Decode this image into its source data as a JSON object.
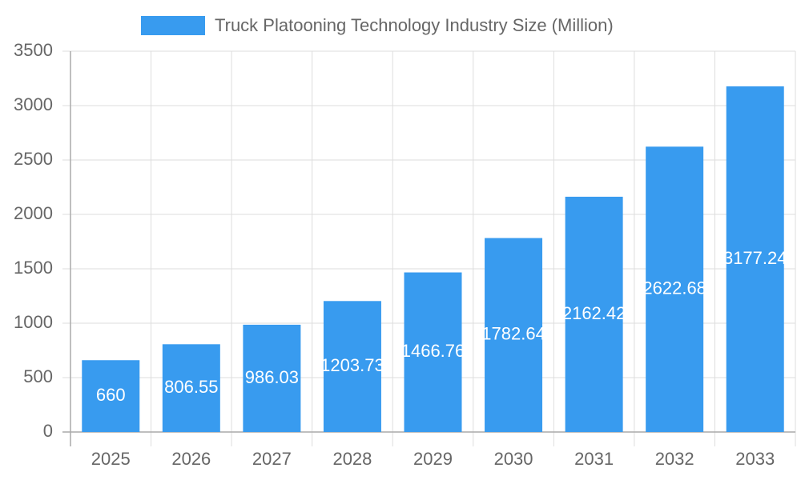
{
  "chart_data": {
    "type": "bar",
    "legend": "Truck Platooning Technology Industry Size (Million)",
    "categories": [
      "2025",
      "2026",
      "2027",
      "2028",
      "2029",
      "2030",
      "2031",
      "2032",
      "2033"
    ],
    "values": [
      660,
      806.55,
      986.03,
      1203.73,
      1466.76,
      1782.64,
      2162.42,
      2622.68,
      3177.24
    ],
    "color": "#389bef",
    "ylim": [
      0,
      3500
    ],
    "yticks": [
      0,
      500,
      1000,
      1500,
      2000,
      2500,
      3000,
      3500
    ],
    "grid": true
  }
}
